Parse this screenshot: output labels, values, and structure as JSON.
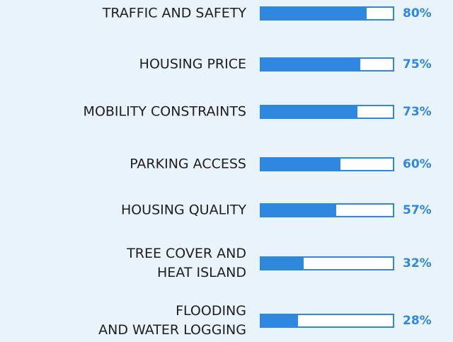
{
  "chart_data": {
    "type": "bar",
    "orientation": "horizontal",
    "categories": [
      "TRAFFIC AND SAFETY",
      "HOUSING PRICE",
      "MOBILITY CONSTRAINTS",
      "PARKING ACCESS",
      "HOUSING QUALITY",
      "TREE COVER AND\nHEAT ISLAND",
      "FLOODING\nAND WATER LOGGING"
    ],
    "values": [
      80,
      75,
      73,
      60,
      57,
      32,
      28
    ],
    "value_labels": [
      "80%",
      "75%",
      "73%",
      "60%",
      "57%",
      "32%",
      "28%"
    ],
    "color": "#2f87e0",
    "xlim": [
      0,
      100
    ]
  }
}
